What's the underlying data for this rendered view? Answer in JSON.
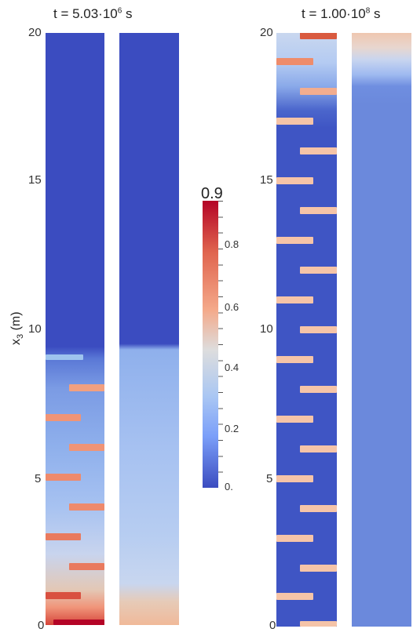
{
  "left_plot": {
    "title_prefix": "t = 5.03·10",
    "title_exp": "6",
    "title_suffix": " s"
  },
  "right_plot": {
    "title_prefix": "t = 1.00·10",
    "title_exp": "8",
    "title_suffix": " s"
  },
  "y_axis": {
    "label_main": "x",
    "label_sub": "3",
    "label_unit": " (m)",
    "ticks": [
      "20",
      "15",
      "10",
      "5",
      "0"
    ]
  },
  "colorbar": {
    "max_label": "0.9",
    "ticks": [
      "0.8",
      "0.6",
      "0.4",
      "0.2",
      "0."
    ],
    "colors": {
      "low": "#3b4cc0",
      "mid": "#dddddd",
      "high": "#b40426"
    }
  }
}
